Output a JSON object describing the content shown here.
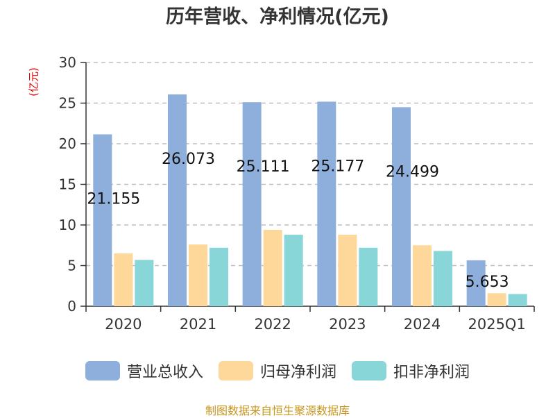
{
  "title": "历年营收、净利情况(亿元)",
  "unit_label": "(亿元)",
  "source": "制图数据来自恒生聚源数据库",
  "colors": {
    "revenue": "#8eaedb",
    "net_profit": "#fdd89a",
    "deducted_profit": "#88d6d8",
    "unit": "#e00000",
    "source": "#c7961f"
  },
  "chart_data": {
    "type": "bar",
    "title": "历年营收、净利情况(亿元)",
    "ylabel": "(亿元)",
    "ylim": [
      0,
      30
    ],
    "yticks": [
      0,
      5,
      10,
      15,
      20,
      25,
      30
    ],
    "grid": true,
    "legend_position": "bottom",
    "categories": [
      "2020",
      "2021",
      "2022",
      "2023",
      "2024",
      "2025Q1"
    ],
    "series": [
      {
        "name": "营业总收入",
        "values": [
          21.155,
          26.073,
          25.111,
          25.177,
          24.499,
          5.653
        ],
        "labels": [
          "21.155",
          "26.073",
          "25.111",
          "25.177",
          "24.499",
          "5.653"
        ]
      },
      {
        "name": "归母净利润",
        "values": [
          6.5,
          7.6,
          9.4,
          8.8,
          7.5,
          1.6
        ]
      },
      {
        "name": "扣非净利润",
        "values": [
          5.7,
          7.2,
          8.8,
          7.2,
          6.8,
          1.5
        ]
      }
    ]
  }
}
